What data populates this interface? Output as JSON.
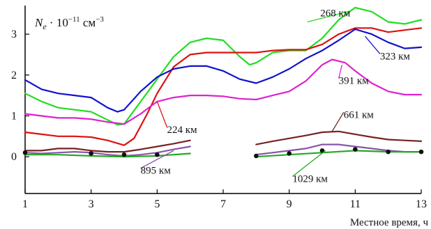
{
  "chart_data": {
    "type": "line",
    "title": "",
    "xlabel": "Местное время, ч",
    "ylabel": {
      "base": "N",
      "sub": "e",
      "mid": " · 10",
      "exp": "−11",
      "unit": " см",
      "unit_exp": "−3"
    },
    "xlim": [
      1,
      13
    ],
    "ylim": [
      -0.9,
      3.7
    ],
    "x_ticks": [
      1,
      3,
      5,
      7,
      9,
      11,
      13
    ],
    "y_ticks": [
      0,
      1,
      2,
      3
    ],
    "grid": false,
    "legend": "none",
    "series": [
      {
        "name": "268 км",
        "color": "#22dd22",
        "points": [
          [
            1,
            1.55
          ],
          [
            1.5,
            1.35
          ],
          [
            2,
            1.2
          ],
          [
            2.5,
            1.15
          ],
          [
            3,
            1.1
          ],
          [
            3.5,
            0.9
          ],
          [
            3.8,
            0.78
          ],
          [
            4,
            0.8
          ],
          [
            4.5,
            1.35
          ],
          [
            5,
            1.9
          ],
          [
            5.5,
            2.45
          ],
          [
            6,
            2.8
          ],
          [
            6.5,
            2.9
          ],
          [
            7,
            2.85
          ],
          [
            7.5,
            2.45
          ],
          [
            7.8,
            2.25
          ],
          [
            8,
            2.3
          ],
          [
            8.5,
            2.55
          ],
          [
            9,
            2.6
          ],
          [
            9.5,
            2.6
          ],
          [
            10,
            2.9
          ],
          [
            10.5,
            3.35
          ],
          [
            11,
            3.65
          ],
          [
            11.5,
            3.55
          ],
          [
            12,
            3.3
          ],
          [
            12.5,
            3.25
          ],
          [
            13,
            3.35
          ]
        ]
      },
      {
        "name": "224 км",
        "color": "#dd1111",
        "points": [
          [
            1,
            0.6
          ],
          [
            1.5,
            0.55
          ],
          [
            2,
            0.5
          ],
          [
            2.5,
            0.5
          ],
          [
            3,
            0.48
          ],
          [
            3.5,
            0.4
          ],
          [
            4,
            0.28
          ],
          [
            4.3,
            0.45
          ],
          [
            4.7,
            1.05
          ],
          [
            5,
            1.55
          ],
          [
            5.5,
            2.2
          ],
          [
            6,
            2.5
          ],
          [
            6.5,
            2.55
          ],
          [
            7,
            2.55
          ],
          [
            7.5,
            2.55
          ],
          [
            8,
            2.55
          ],
          [
            8.5,
            2.6
          ],
          [
            9,
            2.62
          ],
          [
            9.5,
            2.62
          ],
          [
            10,
            2.75
          ],
          [
            10.5,
            3.0
          ],
          [
            11,
            3.15
          ],
          [
            11.5,
            3.15
          ],
          [
            12,
            3.05
          ],
          [
            12.5,
            3.1
          ],
          [
            13,
            3.15
          ]
        ]
      },
      {
        "name": "323 км",
        "color": "#1111cc",
        "points": [
          [
            1,
            1.88
          ],
          [
            1.5,
            1.65
          ],
          [
            2,
            1.55
          ],
          [
            2.5,
            1.5
          ],
          [
            3,
            1.45
          ],
          [
            3.5,
            1.2
          ],
          [
            3.8,
            1.1
          ],
          [
            4,
            1.15
          ],
          [
            4.5,
            1.6
          ],
          [
            5,
            1.95
          ],
          [
            5.5,
            2.15
          ],
          [
            6,
            2.22
          ],
          [
            6.5,
            2.22
          ],
          [
            7,
            2.1
          ],
          [
            7.5,
            1.9
          ],
          [
            8,
            1.8
          ],
          [
            8.5,
            1.95
          ],
          [
            9,
            2.15
          ],
          [
            9.5,
            2.4
          ],
          [
            10,
            2.6
          ],
          [
            10.5,
            2.85
          ],
          [
            11,
            3.12
          ],
          [
            11.5,
            3.0
          ],
          [
            12,
            2.8
          ],
          [
            12.5,
            2.65
          ],
          [
            13,
            2.68
          ]
        ]
      },
      {
        "name": "391 км",
        "color": "#dd22cc",
        "points": [
          [
            1,
            1.05
          ],
          [
            1.5,
            1.0
          ],
          [
            2,
            0.95
          ],
          [
            2.5,
            0.95
          ],
          [
            3,
            0.92
          ],
          [
            3.5,
            0.85
          ],
          [
            4,
            0.8
          ],
          [
            4.5,
            1.05
          ],
          [
            5,
            1.35
          ],
          [
            5.5,
            1.45
          ],
          [
            6,
            1.5
          ],
          [
            6.5,
            1.5
          ],
          [
            7,
            1.48
          ],
          [
            7.5,
            1.42
          ],
          [
            8,
            1.4
          ],
          [
            8.5,
            1.5
          ],
          [
            9,
            1.6
          ],
          [
            9.5,
            1.85
          ],
          [
            10,
            2.25
          ],
          [
            10.3,
            2.38
          ],
          [
            10.7,
            2.3
          ],
          [
            11,
            2.1
          ],
          [
            11.5,
            1.8
          ],
          [
            12,
            1.6
          ],
          [
            12.5,
            1.52
          ],
          [
            13,
            1.52
          ]
        ]
      },
      {
        "name": "661 км",
        "color": "#772222",
        "points": [
          [
            1,
            0.15
          ],
          [
            1.5,
            0.15
          ],
          [
            2,
            0.2
          ],
          [
            2.5,
            0.2
          ],
          [
            3,
            0.15
          ],
          [
            3.5,
            0.12
          ],
          [
            4,
            0.12
          ],
          [
            4.5,
            0.18
          ],
          [
            5,
            0.25
          ],
          [
            5.5,
            0.32
          ],
          [
            6,
            0.4
          ],
          [
            6.05,
            null
          ],
          [
            8,
            0.3
          ],
          [
            8.5,
            0.38
          ],
          [
            9,
            0.45
          ],
          [
            9.5,
            0.52
          ],
          [
            10,
            0.6
          ],
          [
            10.5,
            0.62
          ],
          [
            11,
            0.55
          ],
          [
            11.5,
            0.48
          ],
          [
            12,
            0.42
          ],
          [
            12.5,
            0.4
          ],
          [
            13,
            0.38
          ]
        ]
      },
      {
        "name": "895 км",
        "color": "#8855aa",
        "points": [
          [
            1,
            0.1
          ],
          [
            1.5,
            0.08
          ],
          [
            2,
            0.1
          ],
          [
            2.5,
            0.12
          ],
          [
            3,
            0.1
          ],
          [
            3.5,
            0.05
          ],
          [
            4,
            0.02
          ],
          [
            4.5,
            0.05
          ],
          [
            5,
            0.1
          ],
          [
            5.5,
            0.18
          ],
          [
            6,
            0.25
          ],
          [
            6.05,
            null
          ],
          [
            8,
            0.05
          ],
          [
            8.5,
            0.1
          ],
          [
            9,
            0.15
          ],
          [
            9.5,
            0.2
          ],
          [
            10,
            0.3
          ],
          [
            10.5,
            0.3
          ],
          [
            11,
            0.25
          ],
          [
            11.5,
            0.2
          ],
          [
            12,
            0.15
          ],
          [
            12.5,
            0.12
          ],
          [
            13,
            0.12
          ]
        ]
      },
      {
        "name": "1029 км",
        "color": "#22aa22",
        "points": [
          [
            1,
            0.05
          ],
          [
            2,
            0.05
          ],
          [
            3,
            0.02
          ],
          [
            4,
            0.0
          ],
          [
            5,
            0.02
          ],
          [
            5.5,
            0.05
          ],
          [
            6,
            0.08
          ],
          [
            6.05,
            null
          ],
          [
            8,
            0.0
          ],
          [
            9,
            0.05
          ],
          [
            10,
            0.1
          ],
          [
            11,
            0.15
          ],
          [
            12,
            0.12
          ],
          [
            13,
            0.12
          ]
        ]
      }
    ],
    "markers": [
      [
        1,
        0.1
      ],
      [
        3,
        0.08
      ],
      [
        4,
        0.05
      ],
      [
        5,
        0.05
      ],
      [
        8,
        0.02
      ],
      [
        9,
        0.08
      ],
      [
        10,
        0.15
      ],
      [
        11,
        0.18
      ],
      [
        12,
        0.12
      ],
      [
        13,
        0.12
      ]
    ],
    "marker_color": "#111111",
    "labels": [
      {
        "text": "268 км",
        "x": 10.85,
        "y": 3.5,
        "lx": 9.55,
        "ly": 3.3,
        "anchor": "end",
        "leader_color": "#22dd22"
      },
      {
        "text": "323 км",
        "x": 11.75,
        "y": 2.45,
        "lx": 11.3,
        "ly": 2.95,
        "anchor": "start",
        "leader_color": "#1111cc"
      },
      {
        "text": "391 км",
        "x": 10.5,
        "y": 1.85,
        "lx": 10.6,
        "ly": 2.25,
        "anchor": "start",
        "leader_color": "#dd22cc"
      },
      {
        "text": "224 км",
        "x": 5.3,
        "y": 0.65,
        "lx": 5.0,
        "ly": 1.35,
        "anchor": "start",
        "leader_color": "#dd1111"
      },
      {
        "text": "661 км",
        "x": 10.65,
        "y": 1.02,
        "lx": 10.3,
        "ly": 0.62,
        "anchor": "start",
        "leader_color": "#772222"
      },
      {
        "text": "895 км",
        "x": 4.5,
        "y": -0.35,
        "lx": 5.5,
        "ly": 0.15,
        "anchor": "start",
        "leader_color": "#8855aa"
      },
      {
        "text": "1029 км",
        "x": 9.1,
        "y": -0.55,
        "lx": 10.1,
        "ly": 0.15,
        "anchor": "start",
        "leader_color": "#22aa22"
      }
    ]
  }
}
